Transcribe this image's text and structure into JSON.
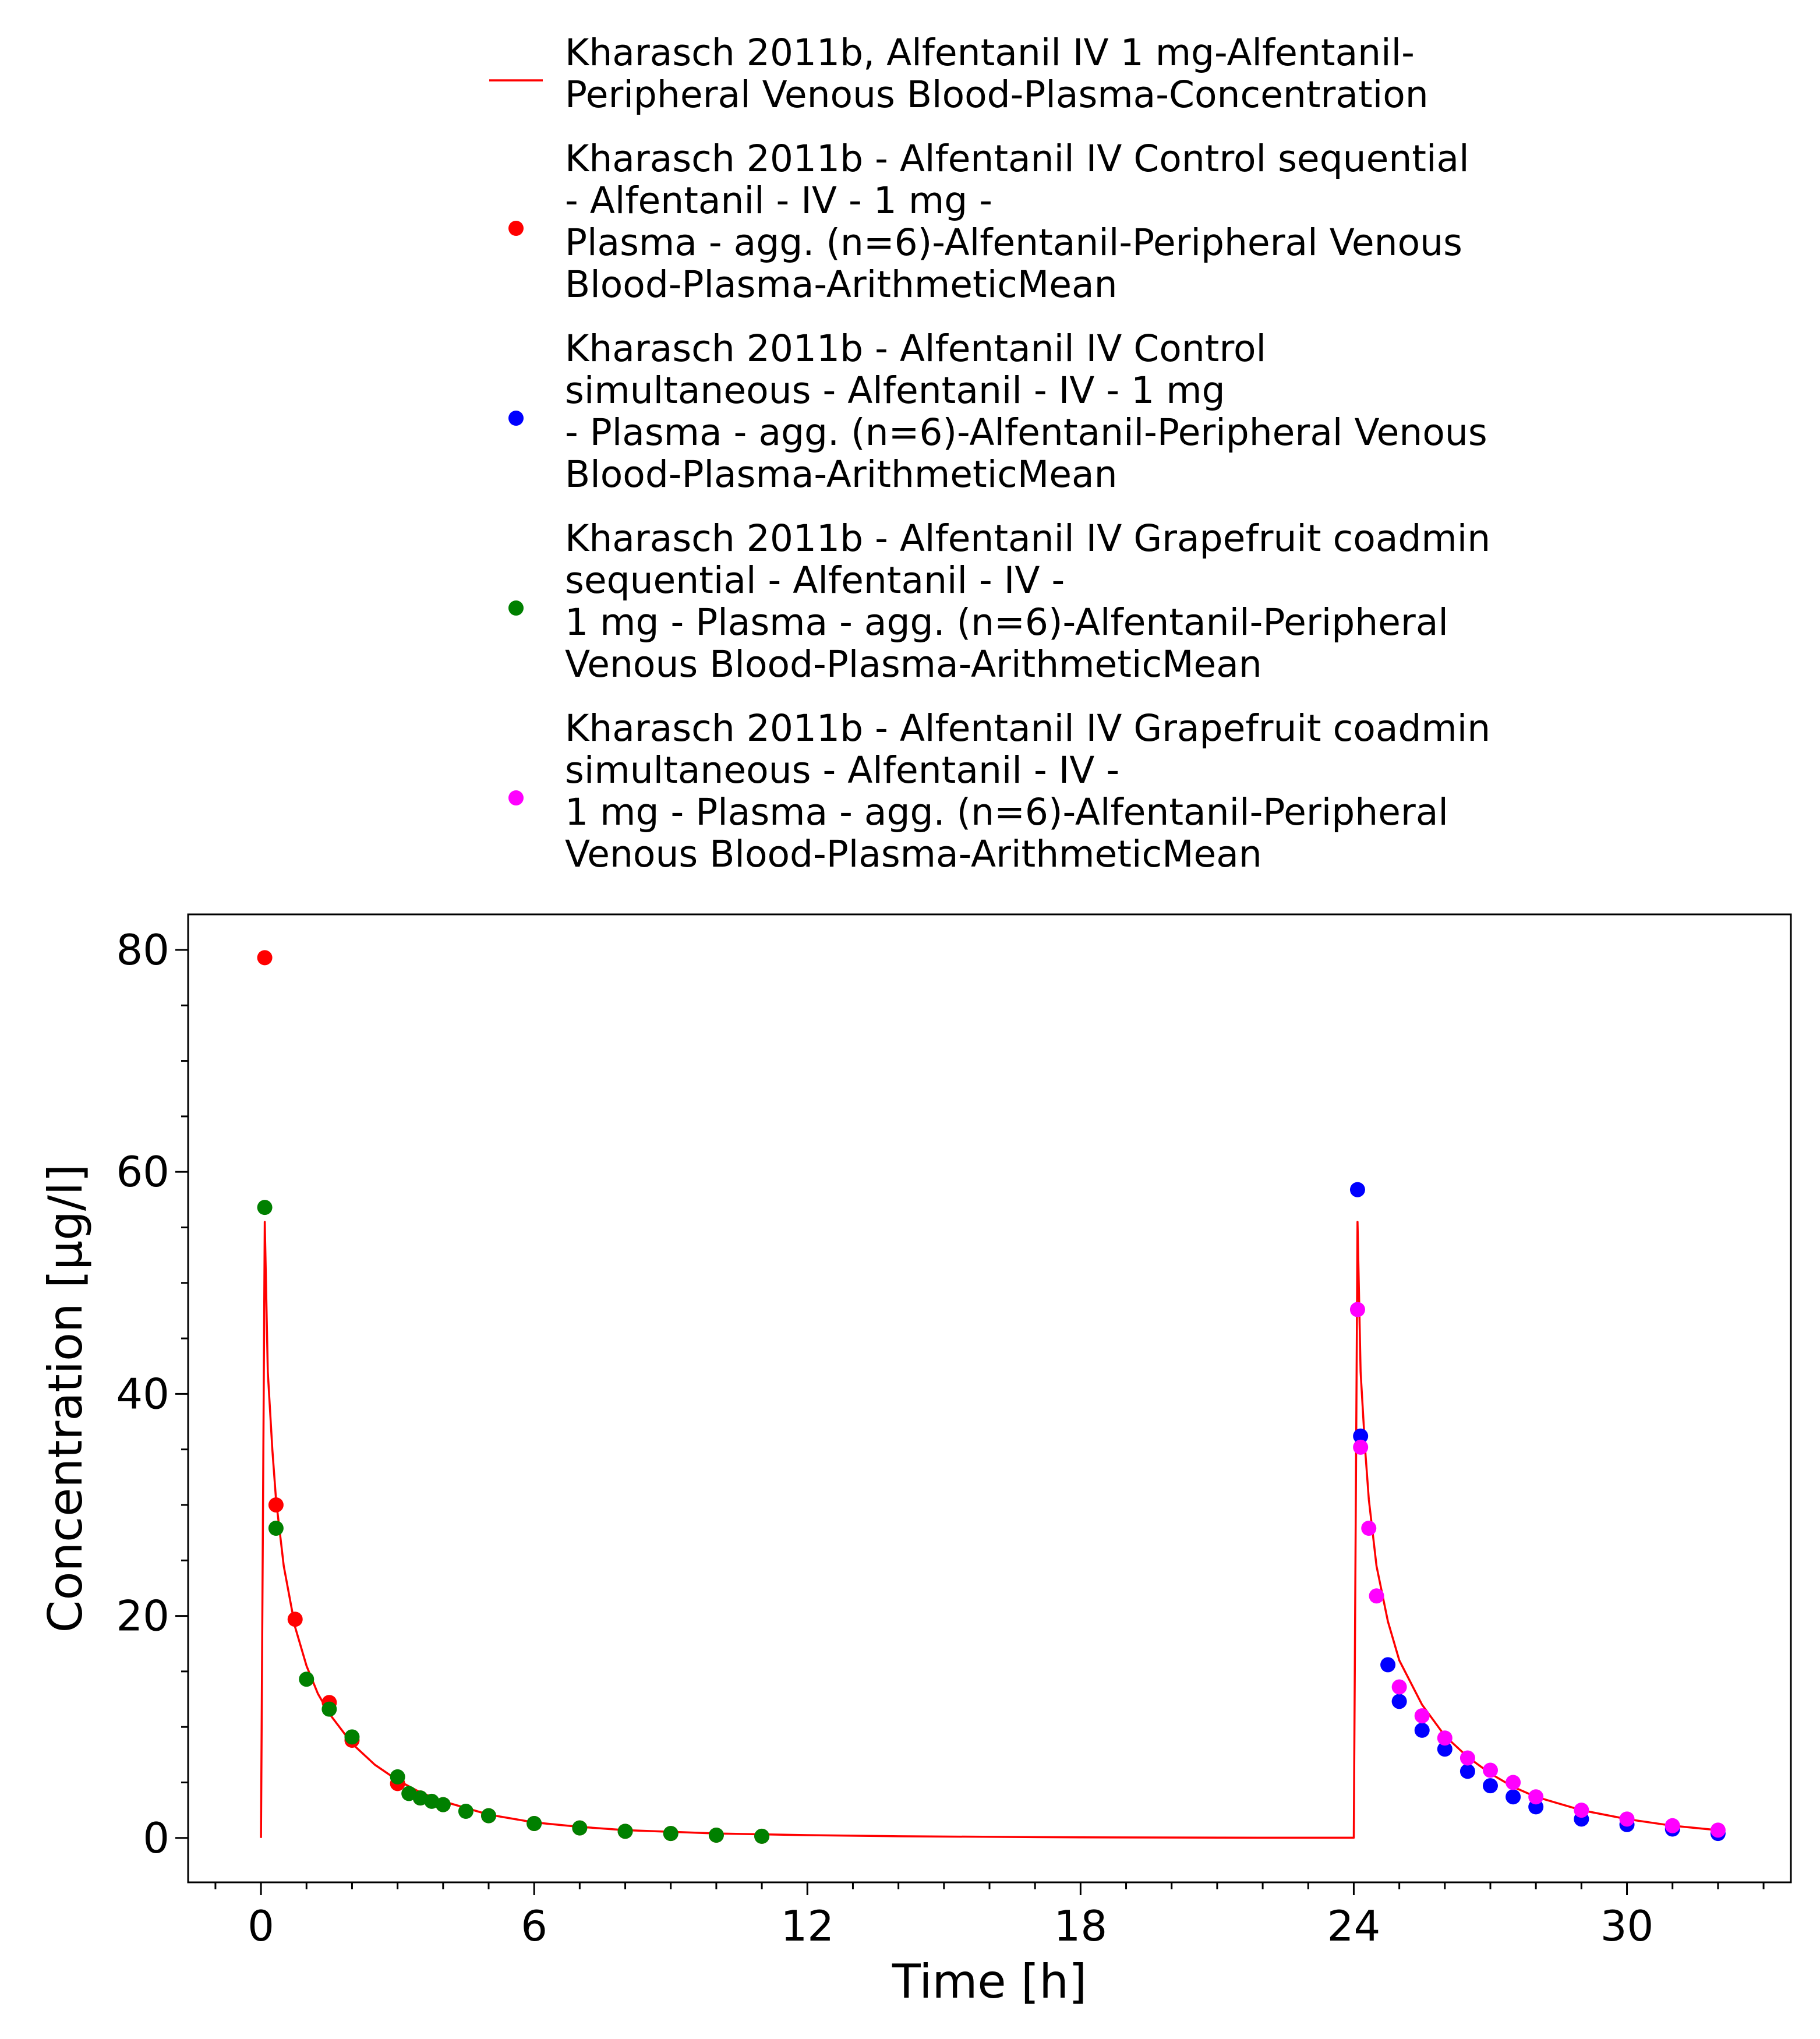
{
  "chart_data": {
    "type": "scatter",
    "xlabel": "Time [h]",
    "ylabel": "Concentration [µg/l]",
    "xlim": [
      -1.6,
      33.6
    ],
    "ylim": [
      -4,
      83.2
    ],
    "xticks": [
      0,
      6,
      12,
      18,
      24,
      30
    ],
    "yticks": [
      0,
      20,
      40,
      60,
      80
    ],
    "x_minor_step": 1,
    "y_minor_step": 5,
    "grid": false,
    "legend_position": "top",
    "series": [
      {
        "name": "Kharasch 2011b, Alfentanil IV 1 mg-Alfentanil-Peripheral Venous Blood-Plasma-Concentration",
        "legend_lines": [
          "Kharasch 2011b, Alfentanil IV 1 mg-Alfentanil-",
          "Peripheral Venous Blood-Plasma-Concentration"
        ],
        "kind": "line",
        "color": "#ff0000",
        "x": [
          0,
          0.083,
          0.15,
          0.25,
          0.33,
          0.5,
          0.75,
          1,
          1.25,
          1.5,
          2,
          2.5,
          3,
          3.5,
          4,
          5,
          6,
          7,
          8,
          10,
          12,
          14,
          18,
          22,
          24,
          24.083,
          24.15,
          24.25,
          24.33,
          24.5,
          24.75,
          25,
          25.5,
          26,
          26.5,
          27,
          27.5,
          28,
          29,
          30,
          31,
          32
        ],
        "y": [
          0,
          55.5,
          42,
          35,
          30.5,
          24.5,
          19,
          15.5,
          13,
          11.2,
          8.5,
          6.6,
          5.2,
          4.1,
          3.3,
          2.1,
          1.4,
          1.0,
          0.7,
          0.4,
          0.25,
          0.15,
          0.05,
          0.02,
          0.02,
          55.5,
          42,
          35,
          30.5,
          24.5,
          19.5,
          16,
          12,
          9.2,
          7.3,
          5.8,
          4.6,
          3.7,
          2.5,
          1.7,
          1.1,
          0.7
        ]
      },
      {
        "name": "Kharasch 2011b - Alfentanil IV Control sequential - Alfentanil - IV - 1 mg - Plasma - agg. (n=6)-Alfentanil-Peripheral Venous Blood-Plasma-ArithmeticMean",
        "legend_lines": [
          "Kharasch 2011b - Alfentanil IV Control sequential",
          "- Alfentanil - IV - 1 mg -",
          "Plasma - agg. (n=6)-Alfentanil-Peripheral Venous",
          "Blood-Plasma-ArithmeticMean"
        ],
        "kind": "scatter",
        "color": "#ff0000",
        "x": [
          0.083,
          0.33,
          0.75,
          1.5,
          2,
          3,
          3.5,
          4,
          5,
          6,
          7,
          8,
          9,
          10,
          11
        ],
        "y": [
          79.3,
          30,
          19.7,
          12.2,
          8.8,
          4.9,
          3.6,
          3.0,
          2.0,
          1.3,
          0.9,
          0.6,
          0.4,
          0.25,
          0.15
        ]
      },
      {
        "name": "Kharasch 2011b - Alfentanil IV Control simultaneous - Alfentanil - IV - 1 mg - Plasma - agg. (n=6)-Alfentanil-Peripheral Venous Blood-Plasma-ArithmeticMean",
        "legend_lines": [
          "Kharasch 2011b - Alfentanil IV Control",
          "simultaneous - Alfentanil - IV - 1 mg",
          "- Plasma - agg. (n=6)-Alfentanil-Peripheral Venous",
          "Blood-Plasma-ArithmeticMean"
        ],
        "kind": "scatter",
        "color": "#0000ff",
        "x": [
          24.083,
          24.15,
          24.75,
          25,
          25.5,
          26,
          26.5,
          27,
          27.5,
          28,
          29,
          30,
          31,
          32
        ],
        "y": [
          58.4,
          36.2,
          15.6,
          12.3,
          9.7,
          8.0,
          6.0,
          4.7,
          3.7,
          2.8,
          1.7,
          1.2,
          0.8,
          0.4
        ]
      },
      {
        "name": "Kharasch 2011b - Alfentanil IV Grapefruit coadmin sequential - Alfentanil - IV - 1 mg - Plasma - agg. (n=6)-Alfentanil-Peripheral Venous Blood-Plasma-ArithmeticMean",
        "legend_lines": [
          "Kharasch 2011b - Alfentanil IV Grapefruit coadmin",
          "sequential - Alfentanil - IV -",
          "1 mg - Plasma - agg. (n=6)-Alfentanil-Peripheral",
          "Venous Blood-Plasma-ArithmeticMean"
        ],
        "kind": "scatter",
        "color": "#008000",
        "x": [
          0.083,
          0.33,
          1,
          1.5,
          2,
          3,
          3.25,
          3.5,
          3.75,
          4,
          4.5,
          5,
          6,
          7,
          8,
          9,
          10,
          11
        ],
        "y": [
          56.8,
          27.9,
          14.3,
          11.6,
          9.1,
          5.5,
          4.0,
          3.6,
          3.3,
          3.0,
          2.4,
          2.0,
          1.3,
          0.9,
          0.6,
          0.4,
          0.25,
          0.15
        ]
      },
      {
        "name": "Kharasch 2011b - Alfentanil IV Grapefruit coadmin simultaneous - Alfentanil - IV - 1 mg - Plasma - agg. (n=6)-Alfentanil-Peripheral Venous Blood-Plasma-ArithmeticMean",
        "legend_lines": [
          "Kharasch 2011b - Alfentanil IV Grapefruit coadmin",
          "simultaneous - Alfentanil - IV -",
          "1 mg - Plasma - agg. (n=6)-Alfentanil-Peripheral",
          "Venous Blood-Plasma-ArithmeticMean"
        ],
        "kind": "scatter",
        "color": "#ff00ff",
        "x": [
          24.083,
          24.15,
          24.33,
          24.5,
          25,
          25.5,
          26,
          26.5,
          27,
          27.5,
          28,
          29,
          30,
          31,
          32
        ],
        "y": [
          47.6,
          35.2,
          27.9,
          21.8,
          13.6,
          11.0,
          9.0,
          7.2,
          6.1,
          5.0,
          3.7,
          2.5,
          1.7,
          1.1,
          0.7
        ]
      }
    ]
  }
}
